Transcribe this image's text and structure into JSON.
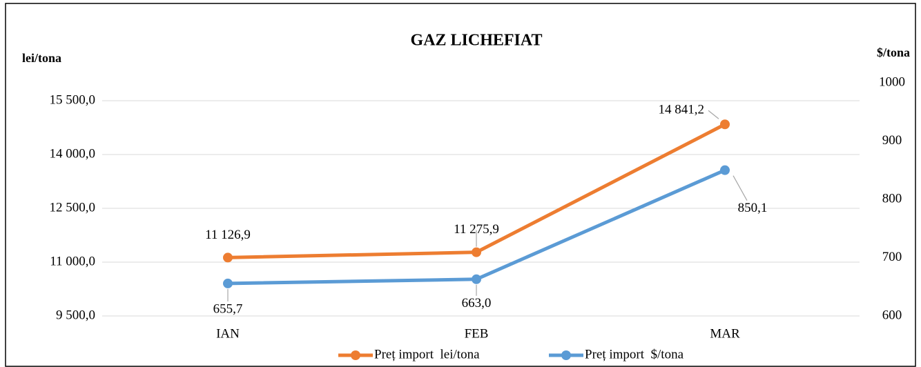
{
  "chart_data": {
    "type": "line",
    "title": "GAZ LICHEFIAT",
    "y_label": "lei/tona",
    "y2_label": "$/tona",
    "categories": [
      "IAN",
      "FEB",
      "MAR"
    ],
    "series": [
      {
        "name": "Preț import  lei/tona",
        "color": "#ed7d31",
        "values": [
          11126.9,
          11275.9,
          14841.2
        ],
        "value_labels": [
          "11 126,9",
          "11 275,9",
          "14 841,2"
        ]
      },
      {
        "name": "Preț import  $/tona",
        "color": "#5b9bd5",
        "axis": "y2",
        "values": [
          655.7,
          663.0,
          850.1
        ],
        "value_labels": [
          "655,7",
          "663,0",
          "850,1"
        ]
      }
    ],
    "ylim": [
      9500,
      16000
    ],
    "yticks": [
      {
        "value": 9500,
        "label": "9 500,0"
      },
      {
        "value": 11000,
        "label": "11 000,0"
      },
      {
        "value": 12500,
        "label": "12 500,0"
      },
      {
        "value": 14000,
        "label": "14 000,0"
      },
      {
        "value": 15500,
        "label": "15 500,0"
      }
    ],
    "y2lim": [
      600,
      1000
    ],
    "y2ticks": [
      600,
      700,
      800,
      900,
      1000
    ],
    "grid": true,
    "legend": "bottom"
  }
}
